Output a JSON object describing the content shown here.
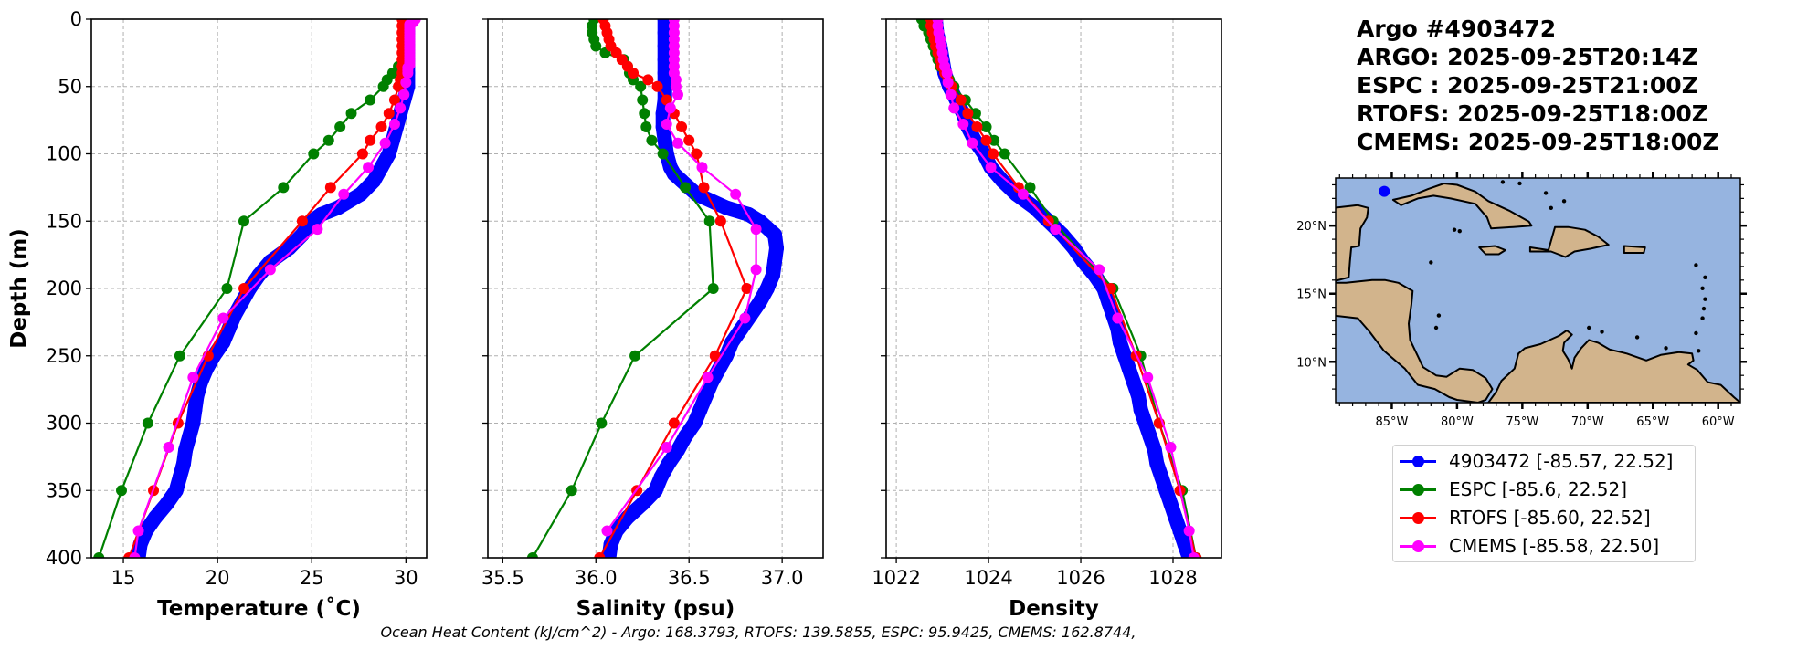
{
  "title": {
    "lines": [
      "Argo #4903472",
      "ARGO: 2025-09-25T20:14Z",
      "ESPC : 2025-09-25T21:00Z",
      "RTOFS: 2025-09-25T18:00Z",
      "CMEMS: 2025-09-25T18:00Z"
    ]
  },
  "footer": {
    "ohc_text": "Ocean Heat Content (kJ/cm^2) - Argo: 168.3793,  RTOFS: 139.5855,  ESPC: 95.9425,  CMEMS: 162.8744,"
  },
  "colors": {
    "argo": "#0000ff",
    "espc": "#008000",
    "rtofs": "#ff0000",
    "cmems": "#ff00ff",
    "grid": "#b0b0b0",
    "ocean": "#96b4e0",
    "land": "#d2b48c",
    "river": "#a6bedd"
  },
  "legend": [
    {
      "key": "argo",
      "label": "4903472 [-85.57, 22.52]"
    },
    {
      "key": "espc",
      "label": "ESPC [-85.6, 22.52]"
    },
    {
      "key": "rtofs",
      "label": "RTOFS [-85.60, 22.52]"
    },
    {
      "key": "cmems",
      "label": "CMEMS [-85.58, 22.50]"
    }
  ],
  "map": {
    "lon_range": [
      -89.3,
      -58.3
    ],
    "lat_range": [
      7.0,
      23.5
    ],
    "lon_ticks": [
      {
        "v": -85,
        "label": "85°W"
      },
      {
        "v": -80,
        "label": "80°W"
      },
      {
        "v": -75,
        "label": "75°W"
      },
      {
        "v": -70,
        "label": "70°W"
      },
      {
        "v": -65,
        "label": "65°W"
      },
      {
        "v": -60,
        "label": "60°W"
      }
    ],
    "lat_ticks": [
      {
        "v": 20,
        "label": "20°N"
      },
      {
        "v": 15,
        "label": "15°N"
      },
      {
        "v": 10,
        "label": "10°N"
      }
    ],
    "float_position": {
      "lon": -85.57,
      "lat": 22.52
    }
  },
  "chart_data": [
    {
      "type": "line",
      "name": "temperature",
      "xlabel": "Temperature (˚C)",
      "ylabel": "Depth (m)",
      "xlim": [
        13.3,
        31.1
      ],
      "ylim": [
        400,
        0
      ],
      "xticks": [
        15,
        20,
        25,
        30
      ],
      "yticks": [
        0,
        50,
        100,
        150,
        200,
        250,
        300,
        350,
        400
      ],
      "grid": true,
      "series": [
        {
          "name": "argo",
          "label": "4903472",
          "depth": [
            0,
            5,
            10,
            20,
            30,
            40,
            50,
            60,
            70,
            80,
            90,
            100,
            110,
            120,
            130,
            140,
            145,
            150,
            160,
            170,
            180,
            190,
            200,
            210,
            220,
            230,
            240,
            250,
            260,
            270,
            280,
            290,
            300,
            310,
            320,
            330,
            340,
            350,
            360,
            370,
            380,
            390,
            400
          ],
          "values": [
            30.1,
            30.1,
            30.1,
            30.1,
            30.1,
            30.1,
            30.1,
            29.9,
            29.7,
            29.5,
            29.3,
            29.1,
            28.7,
            28.3,
            27.6,
            26.4,
            25.5,
            25.0,
            24.5,
            23.8,
            22.8,
            22.2,
            21.7,
            21.3,
            20.9,
            20.6,
            20.3,
            19.8,
            19.4,
            19.1,
            18.9,
            18.8,
            18.7,
            18.5,
            18.3,
            18.2,
            18.0,
            17.8,
            17.3,
            16.7,
            16.2,
            15.9,
            15.8
          ]
        },
        {
          "name": "espc",
          "label": "ESPC",
          "depth": [
            0,
            5,
            10,
            15,
            20,
            25,
            30,
            35,
            40,
            45,
            50,
            60,
            70,
            80,
            90,
            100,
            125,
            150,
            200,
            250,
            300,
            350,
            400
          ],
          "values": [
            29.9,
            29.9,
            29.9,
            29.9,
            29.9,
            29.9,
            29.9,
            29.6,
            29.3,
            29.0,
            28.8,
            28.1,
            27.1,
            26.5,
            25.9,
            25.1,
            23.5,
            21.4,
            20.5,
            18.0,
            16.3,
            14.9,
            13.7
          ]
        },
        {
          "name": "rtofs",
          "label": "RTOFS",
          "depth": [
            0,
            5,
            10,
            15,
            20,
            25,
            30,
            35,
            40,
            45,
            50,
            60,
            70,
            80,
            90,
            100,
            125,
            150,
            200,
            250,
            300,
            350,
            400
          ],
          "values": [
            29.8,
            29.8,
            29.8,
            29.8,
            29.8,
            29.8,
            29.8,
            29.8,
            29.8,
            29.7,
            29.6,
            29.4,
            29.1,
            28.7,
            28.1,
            27.7,
            26.0,
            24.5,
            21.4,
            19.5,
            17.9,
            16.6,
            15.3
          ]
        },
        {
          "name": "cmems",
          "label": "CMEMS",
          "depth": [
            0,
            2,
            4,
            6,
            8,
            10,
            12,
            14,
            16,
            18,
            20,
            22,
            24,
            26,
            28,
            30,
            32,
            34,
            36,
            38,
            40,
            47,
            56,
            66,
            78,
            92,
            110,
            130,
            156,
            186,
            222,
            266,
            318,
            380,
            400
          ],
          "values": [
            30.5,
            30.4,
            30.2,
            30.2,
            30.2,
            30.2,
            30.2,
            30.2,
            30.2,
            30.2,
            30.2,
            30.2,
            30.2,
            30.2,
            30.2,
            30.2,
            30.2,
            30.2,
            30.1,
            30.1,
            30.1,
            30.0,
            29.9,
            29.7,
            29.4,
            28.9,
            28.0,
            26.7,
            25.3,
            22.8,
            20.3,
            18.7,
            17.4,
            15.8,
            15.6
          ]
        }
      ]
    },
    {
      "type": "line",
      "name": "salinity",
      "xlabel": "Salinity (psu)",
      "ylabel": "",
      "xlim": [
        35.42,
        37.22
      ],
      "ylim": [
        400,
        0
      ],
      "xticks": [
        35.5,
        36.0,
        36.5,
        37.0
      ],
      "yticks": [
        0,
        50,
        100,
        150,
        200,
        250,
        300,
        350,
        400
      ],
      "grid": true,
      "series": [
        {
          "name": "argo",
          "label": "4903472",
          "depth": [
            0,
            10,
            20,
            30,
            40,
            50,
            60,
            70,
            80,
            90,
            100,
            110,
            115,
            120,
            130,
            140,
            145,
            150,
            160,
            170,
            180,
            190,
            200,
            210,
            220,
            230,
            240,
            250,
            260,
            270,
            280,
            290,
            300,
            310,
            320,
            330,
            340,
            350,
            360,
            370,
            380,
            390,
            400
          ],
          "values": [
            36.37,
            36.37,
            36.37,
            36.37,
            36.37,
            36.37,
            36.37,
            36.36,
            36.36,
            36.37,
            36.38,
            36.4,
            36.42,
            36.46,
            36.54,
            36.7,
            36.82,
            36.88,
            36.96,
            36.97,
            36.96,
            36.95,
            36.92,
            36.88,
            36.83,
            36.78,
            36.73,
            36.7,
            36.66,
            36.62,
            36.59,
            36.56,
            36.53,
            36.48,
            36.44,
            36.39,
            36.35,
            36.32,
            36.25,
            36.17,
            36.11,
            36.08,
            36.07
          ]
        },
        {
          "name": "espc",
          "label": "ESPC",
          "depth": [
            0,
            5,
            10,
            15,
            20,
            25,
            30,
            35,
            40,
            45,
            50,
            60,
            70,
            80,
            90,
            100,
            125,
            150,
            200,
            250,
            300,
            350,
            400
          ],
          "values": [
            35.99,
            35.98,
            35.98,
            35.99,
            36.0,
            36.05,
            36.15,
            36.17,
            36.18,
            36.2,
            36.24,
            36.25,
            36.26,
            36.27,
            36.3,
            36.36,
            36.48,
            36.61,
            36.63,
            36.21,
            36.03,
            35.87,
            35.66
          ]
        },
        {
          "name": "rtofs",
          "label": "RTOFS",
          "depth": [
            0,
            5,
            10,
            15,
            20,
            25,
            30,
            35,
            40,
            45,
            50,
            60,
            70,
            80,
            90,
            100,
            125,
            150,
            200,
            250,
            300,
            350,
            400
          ],
          "values": [
            36.04,
            36.05,
            36.06,
            36.07,
            36.08,
            36.11,
            36.14,
            36.17,
            36.2,
            36.28,
            36.33,
            36.38,
            36.42,
            36.46,
            36.5,
            36.54,
            36.58,
            36.67,
            36.81,
            36.64,
            36.42,
            36.22,
            36.02
          ]
        },
        {
          "name": "cmems",
          "label": "CMEMS",
          "depth": [
            0,
            5,
            10,
            15,
            20,
            25,
            30,
            35,
            40,
            45,
            50,
            56,
            66,
            78,
            92,
            110,
            130,
            156,
            186,
            222,
            266,
            318,
            380
          ],
          "values": [
            36.42,
            36.42,
            36.42,
            36.42,
            36.42,
            36.42,
            36.42,
            36.42,
            36.42,
            36.43,
            36.43,
            36.44,
            36.4,
            36.38,
            36.44,
            36.57,
            36.75,
            36.86,
            36.86,
            36.8,
            36.6,
            36.38,
            36.06
          ]
        }
      ]
    },
    {
      "type": "line",
      "name": "density",
      "xlabel": "Density",
      "ylabel": "",
      "xlim": [
        1021.78,
        1029.05
      ],
      "ylim": [
        400,
        0
      ],
      "xticks": [
        1022,
        1024,
        1026,
        1028
      ],
      "yticks": [
        0,
        50,
        100,
        150,
        200,
        250,
        300,
        350,
        400
      ],
      "grid": true,
      "series": [
        {
          "name": "argo",
          "label": "4903472",
          "depth": [
            0,
            10,
            20,
            30,
            40,
            50,
            60,
            70,
            80,
            90,
            100,
            110,
            120,
            130,
            140,
            150,
            160,
            170,
            180,
            190,
            200,
            210,
            220,
            230,
            240,
            250,
            260,
            270,
            280,
            290,
            300,
            310,
            320,
            330,
            340,
            350,
            360,
            370,
            380,
            390,
            400
          ],
          "values": [
            1022.85,
            1022.88,
            1022.95,
            1023.0,
            1023.05,
            1023.15,
            1023.3,
            1023.45,
            1023.55,
            1023.7,
            1023.9,
            1024.05,
            1024.3,
            1024.6,
            1025.0,
            1025.3,
            1025.6,
            1025.85,
            1026.05,
            1026.3,
            1026.5,
            1026.6,
            1026.7,
            1026.8,
            1026.85,
            1026.95,
            1027.05,
            1027.15,
            1027.25,
            1027.3,
            1027.4,
            1027.5,
            1027.6,
            1027.65,
            1027.75,
            1027.85,
            1027.95,
            1028.05,
            1028.15,
            1028.25,
            1028.35
          ]
        },
        {
          "name": "espc",
          "label": "ESPC",
          "depth": [
            0,
            5,
            10,
            15,
            20,
            25,
            30,
            35,
            40,
            45,
            50,
            60,
            70,
            80,
            90,
            100,
            125,
            150,
            200,
            250,
            300,
            350,
            400
          ],
          "values": [
            1022.55,
            1022.6,
            1022.7,
            1022.75,
            1022.8,
            1022.85,
            1022.9,
            1022.95,
            1023.05,
            1023.15,
            1023.25,
            1023.5,
            1023.72,
            1023.95,
            1024.12,
            1024.35,
            1024.9,
            1025.4,
            1026.7,
            1027.3,
            1027.7,
            1028.2,
            1028.5
          ]
        },
        {
          "name": "rtofs",
          "label": "RTOFS",
          "depth": [
            0,
            5,
            10,
            15,
            20,
            25,
            30,
            35,
            40,
            45,
            50,
            60,
            70,
            80,
            90,
            100,
            125,
            150,
            200,
            250,
            300,
            350,
            400
          ],
          "values": [
            1022.75,
            1022.75,
            1022.78,
            1022.82,
            1022.85,
            1022.9,
            1022.95,
            1022.98,
            1023.05,
            1023.12,
            1023.2,
            1023.4,
            1023.55,
            1023.75,
            1023.95,
            1024.1,
            1024.65,
            1025.3,
            1026.65,
            1027.2,
            1027.7,
            1028.15,
            1028.5
          ]
        },
        {
          "name": "cmems",
          "label": "CMEMS",
          "depth": [
            0,
            5,
            10,
            15,
            20,
            25,
            30,
            35,
            40,
            47,
            56,
            66,
            78,
            92,
            110,
            130,
            156,
            186,
            222,
            266,
            318,
            380,
            400
          ],
          "values": [
            1022.9,
            1022.9,
            1022.92,
            1022.95,
            1022.98,
            1023.0,
            1023.02,
            1023.05,
            1023.1,
            1023.12,
            1023.18,
            1023.25,
            1023.45,
            1023.65,
            1024.05,
            1024.75,
            1025.45,
            1026.4,
            1026.8,
            1027.45,
            1027.95,
            1028.35,
            1028.45
          ]
        }
      ]
    }
  ]
}
